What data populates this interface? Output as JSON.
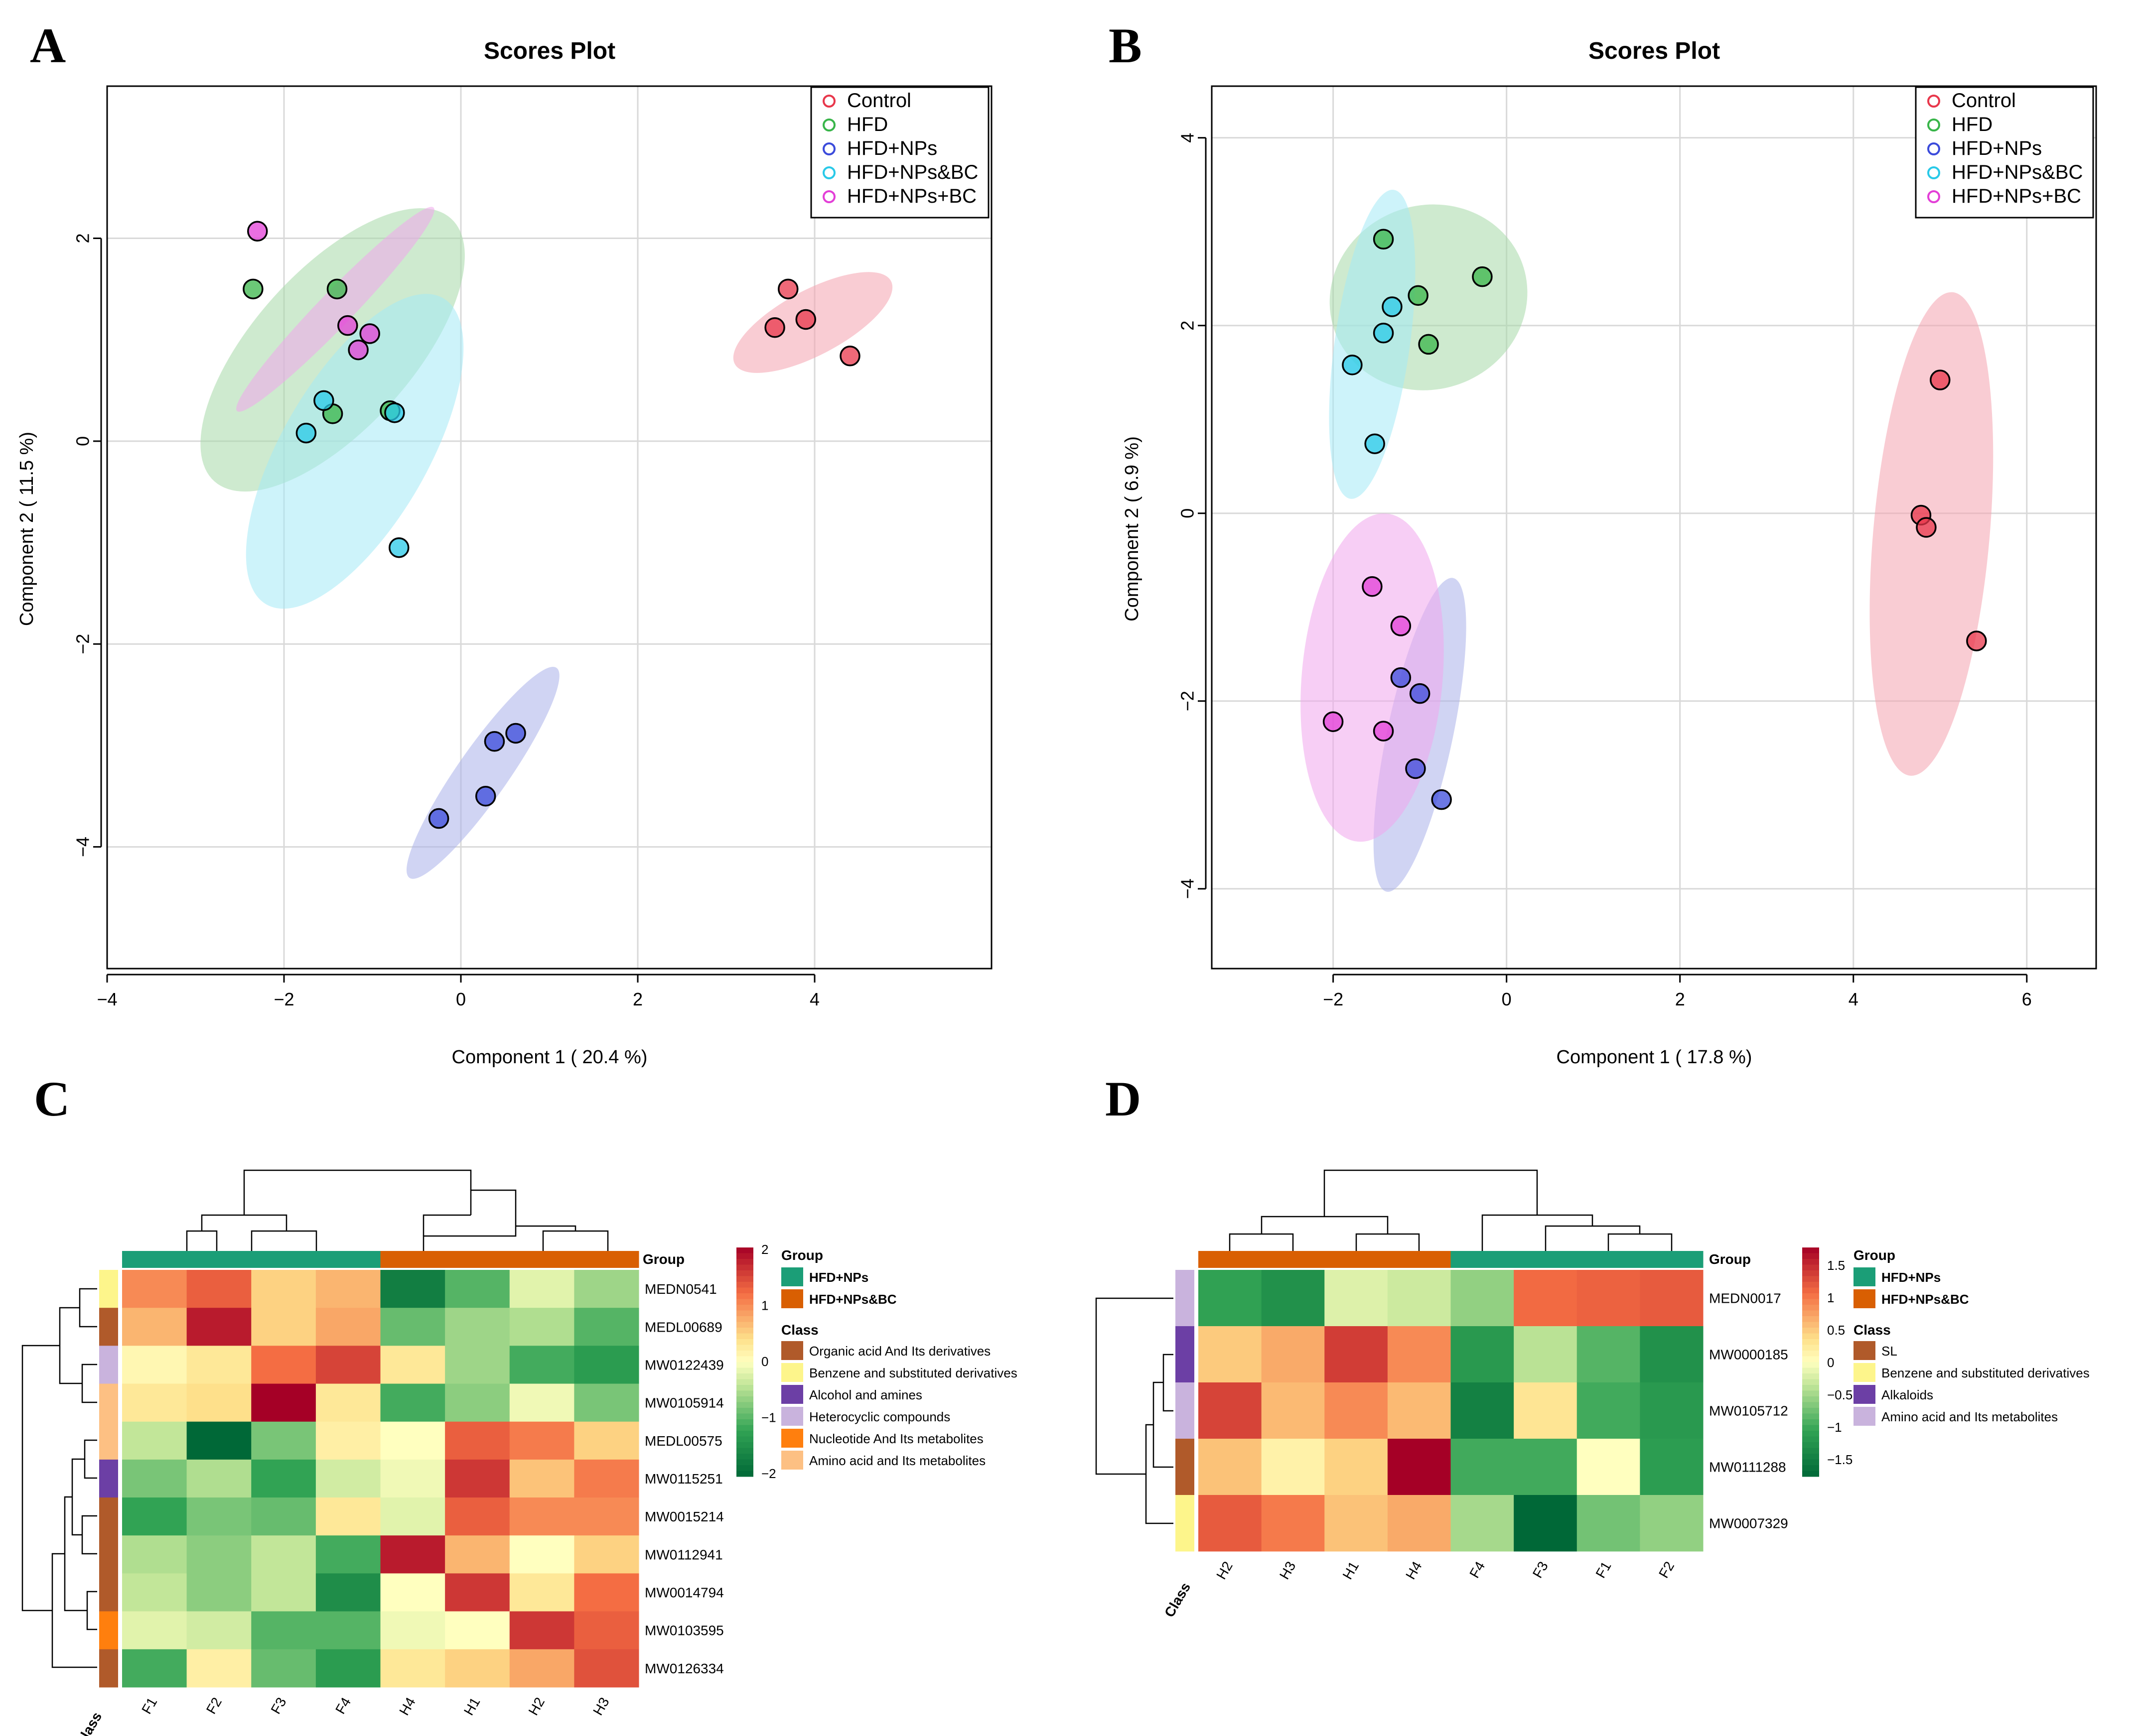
{
  "chart_data": [
    {
      "panel": "A",
      "type": "scatter",
      "title": "Scores Plot",
      "xlabel": "Component 1 ( 20.4 %)",
      "ylabel": "Component 2 ( 11.5 %)",
      "xlim": [
        -4,
        6
      ],
      "ylim": [
        -5.2,
        3.5
      ],
      "xticks": [
        -4,
        -2,
        0,
        2,
        4
      ],
      "yticks": [
        -4,
        -2,
        0,
        2
      ],
      "grid": true,
      "legend_position": "top-right",
      "series": [
        {
          "name": "Control",
          "color": "#e8374b",
          "fill": "#f4a3af",
          "points": [
            [
              3.7,
              1.5
            ],
            [
              3.55,
              1.12
            ],
            [
              3.9,
              1.2
            ],
            [
              4.4,
              0.84
            ]
          ],
          "ellipse": {
            "cx": 3.98,
            "cy": 1.17,
            "rx": 1.0,
            "ry": 0.32,
            "angle": -28
          }
        },
        {
          "name": "HFD",
          "color": "#39b54a",
          "fill": "#a6d9a8",
          "points": [
            [
              -2.35,
              1.5
            ],
            [
              -1.4,
              1.5
            ],
            [
              -1.45,
              0.27
            ],
            [
              -0.8,
              0.3
            ]
          ],
          "ellipse": {
            "cx": -1.45,
            "cy": 0.9,
            "rx": 2.0,
            "ry": 0.78,
            "angle": -48
          }
        },
        {
          "name": "HFD+NPs",
          "color": "#3b4bdb",
          "fill": "#a9b0ea",
          "points": [
            [
              -0.25,
              -3.72
            ],
            [
              0.28,
              -3.5
            ],
            [
              0.38,
              -2.96
            ],
            [
              0.62,
              -2.88
            ]
          ],
          "ellipse": {
            "cx": 0.25,
            "cy": -3.27,
            "rx": 1.45,
            "ry": 0.25,
            "angle": -55
          }
        },
        {
          "name": "HFD+NPs&BC",
          "color": "#29c9e8",
          "fill": "#a4e9f6",
          "points": [
            [
              -1.75,
              0.08
            ],
            [
              -1.55,
              0.4
            ],
            [
              -0.75,
              0.28
            ],
            [
              -0.7,
              -1.05
            ]
          ],
          "ellipse": {
            "cx": -1.2,
            "cy": -0.1,
            "rx": 2.0,
            "ry": 0.72,
            "angle": -60
          }
        },
        {
          "name": "HFD+NPs+BC",
          "color": "#e33fd7",
          "fill": "#f1a6ec",
          "points": [
            [
              -2.3,
              2.07
            ],
            [
              -1.28,
              1.14
            ],
            [
              -1.03,
              1.06
            ],
            [
              -1.16,
              0.9
            ]
          ],
          "ellipse": {
            "cx": -1.42,
            "cy": 1.3,
            "rx": 1.6,
            "ry": 0.17,
            "angle": -46
          }
        }
      ]
    },
    {
      "panel": "B",
      "type": "scatter",
      "title": "Scores Plot",
      "xlabel": "Component 1 ( 17.8 %)",
      "ylabel": "Component 2 ( 6.9 %)",
      "xlim": [
        -3.4,
        6.8
      ],
      "ylim": [
        -4.85,
        4.55
      ],
      "xticks": [
        -2,
        0,
        2,
        4,
        6
      ],
      "yticks": [
        -4,
        -2,
        0,
        2,
        4
      ],
      "grid": true,
      "legend_position": "top-right",
      "series": [
        {
          "name": "Control",
          "color": "#e8374b",
          "fill": "#f4a3af",
          "points": [
            [
              5.0,
              1.42
            ],
            [
              4.78,
              -0.02
            ],
            [
              4.84,
              -0.15
            ],
            [
              5.42,
              -1.36
            ]
          ],
          "ellipse": {
            "cx": 4.9,
            "cy": -0.22,
            "rx": 2.8,
            "ry": 0.62,
            "angle": -85
          }
        },
        {
          "name": "HFD",
          "color": "#39b54a",
          "fill": "#a6d9a8",
          "points": [
            [
              -1.42,
              2.92
            ],
            [
              -1.02,
              2.32
            ],
            [
              -0.28,
              2.52
            ],
            [
              -0.9,
              1.8
            ]
          ],
          "ellipse": {
            "cx": -0.9,
            "cy": 2.3,
            "rx": 1.15,
            "ry": 0.98,
            "angle": -20
          }
        },
        {
          "name": "HFD+NPs",
          "color": "#3b4bdb",
          "fill": "#a9b0ea",
          "points": [
            [
              -1.22,
              -1.75
            ],
            [
              -1.0,
              -1.92
            ],
            [
              -1.05,
              -2.72
            ],
            [
              -0.75,
              -3.05
            ]
          ],
          "ellipse": {
            "cx": -1.0,
            "cy": -2.36,
            "rx": 1.85,
            "ry": 0.35,
            "angle": -78
          }
        },
        {
          "name": "HFD+NPs&BC",
          "color": "#29c9e8",
          "fill": "#a4e9f6",
          "points": [
            [
              -1.78,
              1.58
            ],
            [
              -1.42,
              1.92
            ],
            [
              -1.32,
              2.2
            ],
            [
              -1.52,
              0.74
            ]
          ],
          "ellipse": {
            "cx": -1.55,
            "cy": 1.8,
            "rx": 1.8,
            "ry": 0.4,
            "angle": -82
          }
        },
        {
          "name": "HFD+NPs+BC",
          "color": "#e33fd7",
          "fill": "#f1a6ec",
          "points": [
            [
              -1.55,
              -0.78
            ],
            [
              -1.22,
              -1.2
            ],
            [
              -2.0,
              -2.22
            ],
            [
              -1.42,
              -2.32
            ]
          ],
          "ellipse": {
            "cx": -1.55,
            "cy": -1.75,
            "rx": 1.9,
            "ry": 0.75,
            "angle": -85
          }
        }
      ]
    },
    {
      "panel": "C",
      "type": "heatmap",
      "columns": [
        "F1",
        "F2",
        "F3",
        "F4",
        "H4",
        "H1",
        "H2",
        "H3"
      ],
      "column_groups": [
        "HFD+NPs",
        "HFD+NPs",
        "HFD+NPs",
        "HFD+NPs",
        "HFD+NPs&BC",
        "HFD+NPs&BC",
        "HFD+NPs&BC",
        "HFD+NPs&BC"
      ],
      "rows": [
        "MEDN0541",
        "MEDL00689",
        "MW0122439",
        "MW0105914",
        "MEDL00575",
        "MW0115251",
        "MW0015214",
        "MW0112941",
        "MW0014794",
        "MW0103595",
        "MW0126334"
      ],
      "row_classes": [
        "Benzene and substituted derivatives",
        "Organic acid And Its derivatives",
        "Heterocyclic compounds",
        "Amino acid and Its metabolites",
        "Amino acid and Its metabolites",
        "Alcohol and amines",
        "Organic acid And Its derivatives",
        "Organic acid And Its derivatives",
        "Organic acid And Its derivatives",
        "Nucleotide And Its metabolites",
        "Organic acid And Its derivatives"
      ],
      "values": [
        [
          1.0,
          1.3,
          0.5,
          0.7,
          -1.7,
          -1.0,
          -0.2,
          -0.6
        ],
        [
          0.7,
          1.8,
          0.5,
          0.8,
          -0.9,
          -0.6,
          -0.5,
          -1.0
        ],
        [
          0.1,
          0.3,
          1.2,
          1.5,
          0.3,
          -0.6,
          -1.1,
          -1.3
        ],
        [
          0.3,
          0.4,
          2.0,
          0.3,
          -1.1,
          -0.7,
          -0.1,
          -0.8
        ],
        [
          -0.4,
          -2.0,
          -0.8,
          0.2,
          0.0,
          1.3,
          1.1,
          0.5
        ],
        [
          -0.8,
          -0.5,
          -1.2,
          -0.3,
          -0.1,
          1.6,
          0.6,
          1.1
        ],
        [
          -1.2,
          -0.8,
          -0.9,
          0.3,
          -0.2,
          1.3,
          1.0,
          1.0
        ],
        [
          -0.5,
          -0.7,
          -0.4,
          -1.1,
          1.8,
          0.7,
          0.0,
          0.5
        ],
        [
          -0.4,
          -0.7,
          -0.4,
          -1.5,
          0.0,
          1.6,
          0.3,
          1.2
        ],
        [
          -0.2,
          -0.3,
          -1.0,
          -1.0,
          -0.1,
          0.0,
          1.6,
          1.3
        ],
        [
          -1.1,
          0.2,
          -0.9,
          -1.3,
          0.3,
          0.5,
          0.8,
          1.4
        ]
      ],
      "scale_range": [
        -2,
        2
      ],
      "scale_ticks": [
        "2",
        "1",
        "0",
        "−1",
        "−2"
      ],
      "group_legend_title": "Group",
      "class_legend_title": "Class",
      "class_legend": [
        {
          "name": "Organic acid And Its derivatives",
          "color": "#b05a2a"
        },
        {
          "name": "Benzene and substituted derivatives",
          "color": "#fdf58b"
        },
        {
          "name": "Alcohol and amines",
          "color": "#6c3fa5"
        },
        {
          "name": "Heterocyclic compounds",
          "color": "#c9b3dd"
        },
        {
          "name": "Nucleotide And Its metabolites",
          "color": "#ff7f0e"
        },
        {
          "name": "Amino acid and Its metabolites",
          "color": "#fdc083"
        }
      ],
      "group_label": "Group",
      "class_label": "Class"
    },
    {
      "panel": "D",
      "type": "heatmap",
      "columns": [
        "H2",
        "H3",
        "H1",
        "H4",
        "F4",
        "F3",
        "F1",
        "F2"
      ],
      "column_groups": [
        "HFD+NPs&BC",
        "HFD+NPs&BC",
        "HFD+NPs&BC",
        "HFD+NPs&BC",
        "HFD+NPs",
        "HFD+NPs",
        "HFD+NPs",
        "HFD+NPs"
      ],
      "rows": [
        "MEDN0017",
        "MW0000185",
        "MW0105712",
        "MW0111288",
        "MW0007329"
      ],
      "row_classes": [
        "Amino acid and Its metabolites",
        "Alkaloids",
        "Amino acid and Its metabolites",
        "SL",
        "Benzene and substituted derivatives"
      ],
      "values": [
        [
          -1.1,
          -1.3,
          -0.2,
          -0.3,
          -0.6,
          1.1,
          1.15,
          1.2
        ],
        [
          0.5,
          0.7,
          1.4,
          0.9,
          -1.2,
          -0.4,
          -0.9,
          -1.3
        ],
        [
          1.35,
          0.6,
          0.9,
          0.6,
          -1.5,
          0.3,
          -1.0,
          -1.2
        ],
        [
          0.55,
          0.15,
          0.45,
          1.8,
          -1.0,
          -1.0,
          0.0,
          -1.15
        ],
        [
          1.2,
          1.0,
          0.55,
          0.7,
          -0.5,
          -1.8,
          -0.75,
          -0.6
        ]
      ],
      "scale_range": [
        -1.8,
        1.8
      ],
      "scale_ticks": [
        "1.5",
        "1",
        "0.5",
        "0",
        "−0.5",
        "−1",
        "−1.5"
      ],
      "group_legend_title": "Group",
      "class_legend_title": "Class",
      "class_legend": [
        {
          "name": "SL",
          "color": "#b05a2a"
        },
        {
          "name": "Benzene and substituted derivatives",
          "color": "#fdf58b"
        },
        {
          "name": "Alkaloids",
          "color": "#6c3fa5"
        },
        {
          "name": "Amino acid and Its metabolites",
          "color": "#c9b3dd"
        }
      ],
      "group_label": "Group",
      "class_label": "Class"
    }
  ],
  "group_colors": {
    "HFD+NPs": "#1b9e77",
    "HFD+NPs&BC": "#d95f02"
  },
  "panel_labels": [
    "A",
    "B",
    "C",
    "D"
  ]
}
